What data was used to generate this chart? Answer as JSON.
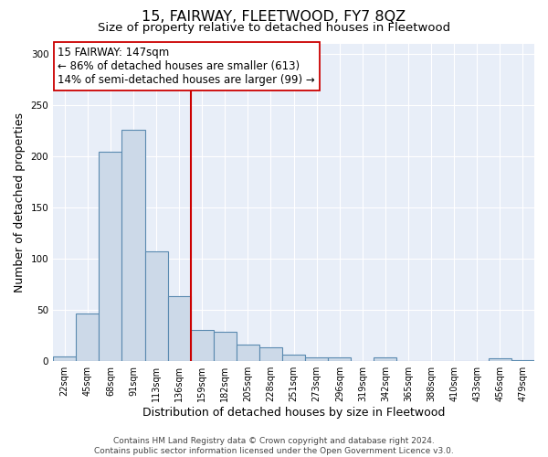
{
  "title": "15, FAIRWAY, FLEETWOOD, FY7 8QZ",
  "subtitle": "Size of property relative to detached houses in Fleetwood",
  "xlabel": "Distribution of detached houses by size in Fleetwood",
  "ylabel": "Number of detached properties",
  "bar_labels": [
    "22sqm",
    "45sqm",
    "68sqm",
    "91sqm",
    "113sqm",
    "136sqm",
    "159sqm",
    "182sqm",
    "205sqm",
    "228sqm",
    "251sqm",
    "273sqm",
    "296sqm",
    "319sqm",
    "342sqm",
    "365sqm",
    "388sqm",
    "410sqm",
    "433sqm",
    "456sqm",
    "479sqm"
  ],
  "bar_values": [
    4,
    46,
    204,
    226,
    107,
    63,
    30,
    28,
    16,
    13,
    6,
    3,
    3,
    0,
    3,
    0,
    0,
    0,
    0,
    2,
    1
  ],
  "bar_color": "#ccd9e8",
  "bar_edge_color": "#5a8ab0",
  "annotation_line1": "15 FAIRWAY: 147sqm",
  "annotation_line2": "← 86% of detached houses are smaller (613)",
  "annotation_line3": "14% of semi-detached houses are larger (99) →",
  "vline_x": 5.5,
  "vline_color": "#cc0000",
  "annotation_box_color": "#ffffff",
  "annotation_box_edge": "#cc0000",
  "ylim": [
    0,
    310
  ],
  "yticks": [
    0,
    50,
    100,
    150,
    200,
    250,
    300
  ],
  "bg_color": "#e8eef8",
  "grid_color": "#ffffff",
  "footer": "Contains HM Land Registry data © Crown copyright and database right 2024.\nContains public sector information licensed under the Open Government Licence v3.0.",
  "title_fontsize": 11.5,
  "subtitle_fontsize": 9.5,
  "label_fontsize": 9,
  "tick_fontsize": 7,
  "annotation_fontsize": 8.5,
  "footer_fontsize": 6.5
}
